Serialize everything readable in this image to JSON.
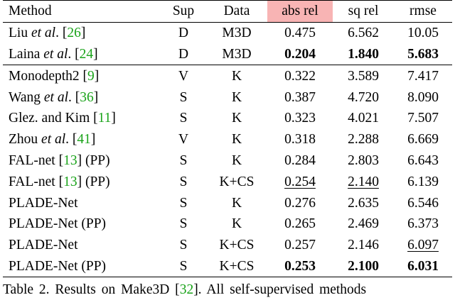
{
  "table": {
    "headers": {
      "method": "Method",
      "sup": "Sup",
      "data": "Data",
      "abs_rel": "abs rel",
      "sq_rel": "sq rel",
      "rmse": "rmse"
    },
    "rows": [
      {
        "pre": "Liu ",
        "etal": "et al",
        "post": ". [",
        "ref": "26",
        "tail": "]",
        "sup": "D",
        "data": "M3D",
        "abs_rel": "0.475",
        "sq_rel": "6.562",
        "rmse": "10.05"
      },
      {
        "pre": "Laina ",
        "etal": "et al",
        "post": ". [",
        "ref": "24",
        "tail": "]",
        "sup": "D",
        "data": "M3D",
        "abs_rel": "0.204",
        "sq_rel": "1.840",
        "rmse": "5.683"
      },
      {
        "pre": "Monodepth2 [",
        "ref": "9",
        "tail": "]",
        "sup": "V",
        "data": "K",
        "abs_rel": "0.322",
        "sq_rel": "3.589",
        "rmse": "7.417"
      },
      {
        "pre": "Wang ",
        "etal": "et al",
        "post": ". [",
        "ref": "36",
        "tail": "]",
        "sup": "S",
        "data": "K",
        "abs_rel": "0.387",
        "sq_rel": "4.720",
        "rmse": "8.090"
      },
      {
        "pre": "Glez. and Kim [",
        "ref": "11",
        "tail": "]",
        "sup": "S",
        "data": "K",
        "abs_rel": "0.323",
        "sq_rel": "4.021",
        "rmse": "7.507"
      },
      {
        "pre": "Zhou ",
        "etal": "et al",
        "post": ". [",
        "ref": "41",
        "tail": "]",
        "sup": "V",
        "data": "K",
        "abs_rel": "0.318",
        "sq_rel": "2.288",
        "rmse": "6.669"
      },
      {
        "pre": "FAL-net [",
        "ref": "13",
        "tail": "] (PP)",
        "sup": "S",
        "data": "K",
        "abs_rel": "0.284",
        "sq_rel": "2.803",
        "rmse": "6.643"
      },
      {
        "pre": "FAL-net [",
        "ref": "13",
        "tail": "] (PP)",
        "sup": "S",
        "data": "K+CS",
        "abs_rel": "0.254",
        "sq_rel": "2.140",
        "rmse": "6.139"
      },
      {
        "pre": "PLADE-Net",
        "sup": "S",
        "data": "K",
        "abs_rel": "0.276",
        "sq_rel": "2.635",
        "rmse": "6.546"
      },
      {
        "pre": "PLADE-Net (PP)",
        "sup": "S",
        "data": "K",
        "abs_rel": "0.265",
        "sq_rel": "2.469",
        "rmse": "6.373"
      },
      {
        "pre": "PLADE-Net",
        "sup": "S",
        "data": "K+CS",
        "abs_rel": "0.257",
        "sq_rel": "2.146",
        "rmse": "6.097"
      },
      {
        "pre": "PLADE-Net (PP)",
        "sup": "S",
        "data": "K+CS",
        "abs_rel": "0.253",
        "sq_rel": "2.100",
        "rmse": "6.031"
      }
    ]
  },
  "caption": {
    "text": "Table 2.  Results on Make3D [",
    "ref": "32",
    "rest": "].  All self-supervised methods"
  },
  "colors": {
    "highlight": "#f8b4b4",
    "ref_link": "#1aa31a"
  }
}
